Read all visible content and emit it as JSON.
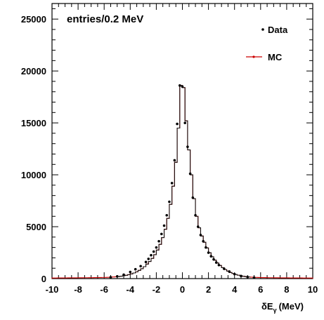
{
  "chart_data": {
    "type": "line",
    "title": "",
    "annotation": "entries/0.2 MeV",
    "xlabel_main": "δE",
    "xlabel_sub": "γ",
    "xlabel_unit": "(MeV)",
    "xlim": [
      -10,
      10
    ],
    "ylim": [
      0,
      26500
    ],
    "x_ticks": [
      -10,
      -8,
      -6,
      -4,
      -2,
      0,
      2,
      4,
      6,
      8,
      10
    ],
    "y_ticks": [
      0,
      5000,
      10000,
      15000,
      20000,
      25000
    ],
    "x_tick_labels": [
      "-10",
      "-8",
      "-6",
      "-4",
      "-2",
      "0",
      "2",
      "4",
      "6",
      "8",
      "10"
    ],
    "y_tick_labels": [
      "0",
      "5000",
      "10000",
      "15000",
      "20000",
      "25000"
    ],
    "grid": false,
    "legend": {
      "placement": "top-right",
      "entries": [
        {
          "label": "Data",
          "marker": "dot",
          "color": "#000000"
        },
        {
          "label": "MC",
          "marker": "line",
          "color": "#cc0000"
        }
      ]
    },
    "series": [
      {
        "name": "Data",
        "style": "points",
        "color": "#000000",
        "x": [
          -5.5,
          -5.0,
          -4.5,
          -4.0,
          -3.6,
          -3.2,
          -2.8,
          -2.6,
          -2.4,
          -2.2,
          -2.0,
          -1.8,
          -1.6,
          -1.4,
          -1.2,
          -1.0,
          -0.8,
          -0.6,
          -0.4,
          -0.2,
          0.0,
          0.2,
          0.4,
          0.6,
          0.8,
          1.0,
          1.2,
          1.4,
          1.6,
          1.8,
          2.0,
          2.2,
          2.4,
          2.6,
          2.8,
          3.2,
          3.6,
          4.0,
          4.5,
          5.0,
          5.5
        ],
        "y": [
          120,
          220,
          380,
          640,
          900,
          1200,
          1600,
          1900,
          2250,
          2600,
          3000,
          3600,
          4300,
          5100,
          6100,
          7400,
          9200,
          11400,
          14900,
          18600,
          18500,
          15000,
          12700,
          10100,
          7800,
          6100,
          5000,
          4200,
          3600,
          3000,
          2500,
          2150,
          1850,
          1550,
          1300,
          950,
          680,
          430,
          250,
          150,
          90
        ]
      },
      {
        "name": "MC",
        "style": "step",
        "color": "#cc0000",
        "x": [
          -10.0,
          -9.8,
          -9.6,
          -9.4,
          -9.2,
          -9.0,
          -8.8,
          -8.6,
          -8.4,
          -8.2,
          -8.0,
          -7.8,
          -7.6,
          -7.4,
          -7.2,
          -7.0,
          -6.8,
          -6.6,
          -6.4,
          -6.2,
          -6.0,
          -5.8,
          -5.6,
          -5.4,
          -5.2,
          -5.0,
          -4.8,
          -4.6,
          -4.4,
          -4.2,
          -4.0,
          -3.8,
          -3.6,
          -3.4,
          -3.2,
          -3.0,
          -2.8,
          -2.6,
          -2.4,
          -2.2,
          -2.0,
          -1.8,
          -1.6,
          -1.4,
          -1.2,
          -1.0,
          -0.8,
          -0.6,
          -0.4,
          -0.2,
          0.0,
          0.2,
          0.4,
          0.6,
          0.8,
          1.0,
          1.2,
          1.4,
          1.6,
          1.8,
          2.0,
          2.2,
          2.4,
          2.6,
          2.8,
          3.0,
          3.2,
          3.4,
          3.6,
          3.8,
          4.0,
          4.2,
          4.4,
          4.6,
          4.8,
          5.0,
          5.2,
          5.4,
          5.6,
          5.8,
          6.0,
          6.2,
          6.4,
          6.6,
          6.8,
          7.0,
          7.2,
          7.4,
          7.6,
          7.8,
          8.0,
          8.2,
          8.4,
          8.6,
          8.8,
          9.0,
          9.2,
          9.4,
          9.6,
          9.8
        ],
        "y": [
          55,
          55,
          60,
          60,
          65,
          65,
          70,
          70,
          75,
          75,
          80,
          80,
          85,
          85,
          90,
          90,
          95,
          100,
          105,
          110,
          115,
          125,
          140,
          155,
          175,
          200,
          230,
          270,
          320,
          380,
          450,
          540,
          650,
          790,
          950,
          1150,
          1400,
          1650,
          1950,
          2300,
          2750,
          3300,
          3950,
          4750,
          5800,
          7150,
          8900,
          11200,
          14500,
          18600,
          18400,
          15200,
          12400,
          10000,
          7700,
          6000,
          4900,
          4100,
          3500,
          2950,
          2500,
          2100,
          1780,
          1500,
          1260,
          1050,
          870,
          720,
          590,
          490,
          400,
          330,
          270,
          225,
          190,
          160,
          140,
          125,
          115,
          105,
          100,
          95,
          90,
          85,
          85,
          80,
          80,
          75,
          75,
          70,
          70,
          65,
          65,
          60,
          60,
          60,
          55,
          55,
          55,
          55
        ]
      }
    ]
  }
}
